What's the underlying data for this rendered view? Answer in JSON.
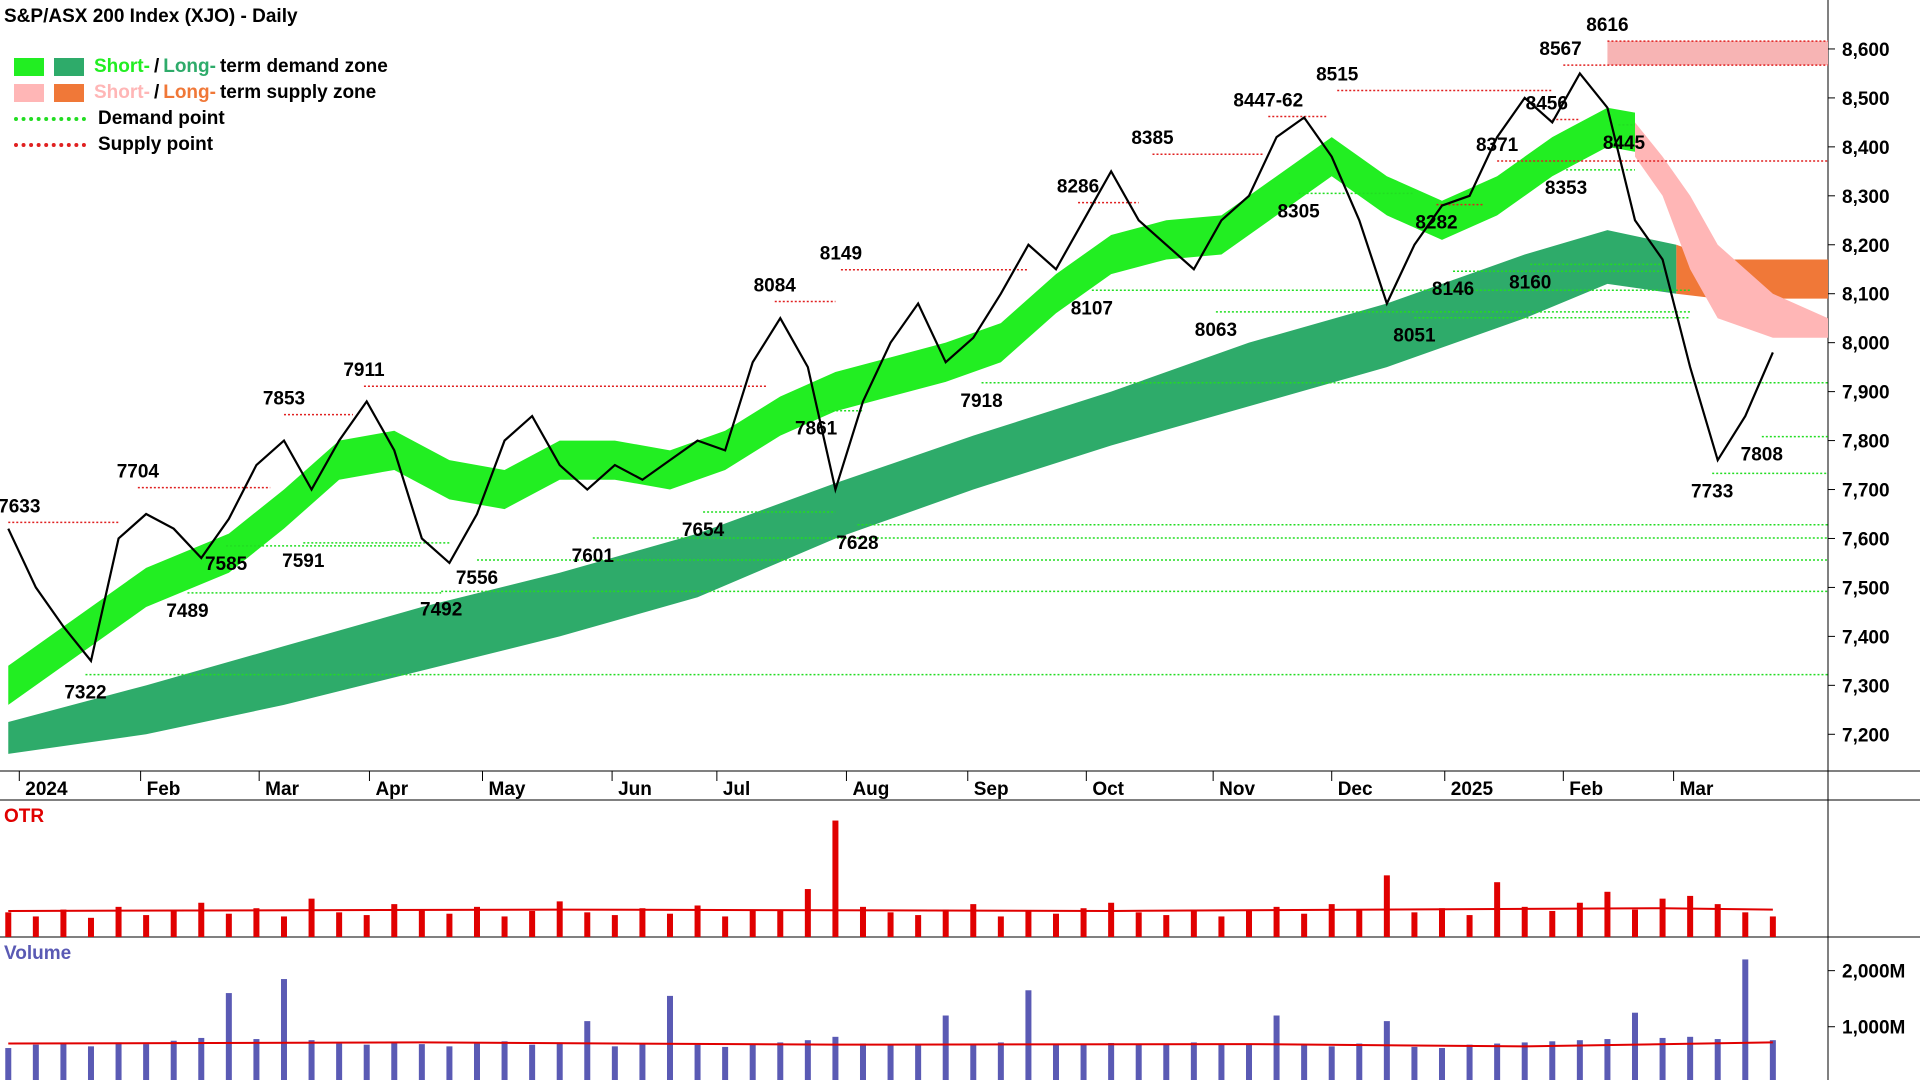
{
  "chart_data": {
    "type": "line",
    "title": "S&P/ASX 200 Index (XJO) - Daily",
    "xlim": [
      -0.3,
      66
    ],
    "xticks": [
      {
        "value": 0.4,
        "label": "2024"
      },
      {
        "value": 4.8,
        "label": "Feb"
      },
      {
        "value": 9.1,
        "label": "Mar"
      },
      {
        "value": 13.1,
        "label": "Apr"
      },
      {
        "value": 17.2,
        "label": "May"
      },
      {
        "value": 21.9,
        "label": "Jun"
      },
      {
        "value": 25.7,
        "label": "Jul"
      },
      {
        "value": 30.4,
        "label": "Aug"
      },
      {
        "value": 34.8,
        "label": "Sep"
      },
      {
        "value": 39.1,
        "label": "Oct"
      },
      {
        "value": 43.7,
        "label": "Nov"
      },
      {
        "value": 48.0,
        "label": "Dec"
      },
      {
        "value": 52.1,
        "label": "2025"
      },
      {
        "value": 56.4,
        "label": "Feb"
      },
      {
        "value": 60.4,
        "label": "Mar"
      }
    ],
    "ylim": [
      7125,
      8700
    ],
    "yticks": [
      {
        "value": 7200,
        "label": "7,200"
      },
      {
        "value": 7300,
        "label": "7,300"
      },
      {
        "value": 7400,
        "label": "7,400"
      },
      {
        "value": 7500,
        "label": "7,500"
      },
      {
        "value": 7600,
        "label": "7,600"
      },
      {
        "value": 7700,
        "label": "7,700"
      },
      {
        "value": 7800,
        "label": "7,800"
      },
      {
        "value": 7900,
        "label": "7,900"
      },
      {
        "value": 8000,
        "label": "8,000"
      },
      {
        "value": 8100,
        "label": "8,100"
      },
      {
        "value": 8200,
        "label": "8,200"
      },
      {
        "value": 8300,
        "label": "8,300"
      },
      {
        "value": 8400,
        "label": "8,400"
      },
      {
        "value": 8500,
        "label": "8,500"
      },
      {
        "value": 8600,
        "label": "8,600"
      }
    ],
    "color": "#000000",
    "values": [
      7620,
      7500,
      7420,
      7350,
      7600,
      7650,
      7620,
      7560,
      7640,
      7750,
      7800,
      7700,
      7800,
      7880,
      7780,
      7600,
      7550,
      7650,
      7800,
      7850,
      7750,
      7700,
      7750,
      7720,
      7760,
      7800,
      7780,
      7960,
      8050,
      7950,
      7700,
      7880,
      8000,
      8080,
      7960,
      8010,
      8100,
      8200,
      8150,
      8250,
      8350,
      8250,
      8200,
      8150,
      8250,
      8300,
      8420,
      8460,
      8380,
      8250,
      8080,
      8200,
      8280,
      8300,
      8420,
      8500,
      8450,
      8550,
      8480,
      8250,
      8170,
      7950,
      7760,
      7850,
      7980
    ],
    "bands": [
      {
        "color": "#2eab6a",
        "x": [
          0,
          5,
          10,
          15,
          20,
          25,
          30,
          35,
          40,
          45,
          50,
          55,
          58,
          60.5
        ],
        "upper": [
          7225,
          7300,
          7380,
          7460,
          7530,
          7610,
          7713,
          7810,
          7900,
          8000,
          8080,
          8180,
          8230,
          8200
        ],
        "lower": [
          7160,
          7200,
          7260,
          7330,
          7400,
          7480,
          7600,
          7700,
          7790,
          7870,
          7950,
          8050,
          8120,
          8100
        ]
      },
      {
        "color": "#f07838",
        "x": [
          60.5,
          62,
          66
        ],
        "upper": [
          8200,
          8170,
          8170
        ],
        "lower": [
          8100,
          8090,
          8090
        ]
      },
      {
        "color": "#22ee22",
        "x": [
          0,
          3,
          5,
          8,
          10,
          12,
          14,
          16,
          18,
          20,
          22,
          24,
          26,
          28,
          30,
          32,
          34,
          36,
          38,
          40,
          42,
          44,
          46,
          48,
          50,
          52,
          54,
          56,
          58,
          59
        ],
        "upper": [
          7340,
          7460,
          7540,
          7610,
          7700,
          7800,
          7820,
          7760,
          7740,
          7800,
          7800,
          7780,
          7820,
          7890,
          7940,
          7970,
          8000,
          8040,
          8140,
          8220,
          8250,
          8260,
          8340,
          8420,
          8340,
          8290,
          8340,
          8420,
          8480,
          8470
        ],
        "lower": [
          7260,
          7380,
          7460,
          7530,
          7620,
          7720,
          7740,
          7680,
          7660,
          7720,
          7720,
          7700,
          7740,
          7810,
          7860,
          7890,
          7920,
          7960,
          8060,
          8140,
          8170,
          8180,
          8260,
          8340,
          8260,
          8210,
          8260,
          8340,
          8400,
          8390
        ]
      },
      {
        "color": "#ffb6b6",
        "x": [
          59,
          60,
          61,
          62,
          64,
          66
        ],
        "upper": [
          8450,
          8380,
          8300,
          8200,
          8100,
          8050
        ],
        "lower": [
          8380,
          8300,
          8150,
          8050,
          8010,
          8010
        ]
      },
      {
        "color": "#f7b4b4",
        "x": [
          58,
          66
        ],
        "upper": [
          8616,
          8616
        ],
        "lower": [
          8567,
          8567
        ]
      }
    ],
    "demand_points": {
      "color": "#22dd22",
      "levels": [
        {
          "value": 7322,
          "x0": 2.8,
          "x1": 66
        },
        {
          "value": 7489,
          "x0": 6.5,
          "x1": 15.7
        },
        {
          "value": 7492,
          "x0": 15.7,
          "x1": 66
        },
        {
          "value": 7556,
          "x0": 17,
          "x1": 66
        },
        {
          "value": 7601,
          "x0": 21.2,
          "x1": 66
        },
        {
          "value": 7628,
          "x0": 30.8,
          "x1": 66
        },
        {
          "value": 7733,
          "x0": 61.8,
          "x1": 66
        },
        {
          "value": 7808,
          "x0": 63.6,
          "x1": 66
        },
        {
          "value": 7918,
          "x0": 35.3,
          "x1": 66
        },
        {
          "value": 8051,
          "x0": 51,
          "x1": 61
        },
        {
          "value": 8063,
          "x0": 43.8,
          "x1": 61
        },
        {
          "value": 8107,
          "x0": 39.3,
          "x1": 61
        },
        {
          "value": 8146,
          "x0": 52.4,
          "x1": 60
        },
        {
          "value": 8160,
          "x0": 55.2,
          "x1": 60
        },
        {
          "value": 7585,
          "x0": 7.9,
          "x1": 15
        },
        {
          "value": 7591,
          "x0": 10.7,
          "x1": 16
        },
        {
          "value": 7654,
          "x0": 25.2,
          "x1": 30
        },
        {
          "value": 7861,
          "x0": 29.3,
          "x1": 31
        },
        {
          "value": 8305,
          "x0": 46.8,
          "x1": 51
        },
        {
          "value": 8353,
          "x0": 56.5,
          "x1": 59
        },
        {
          "value": 8445,
          "x0": 58.4,
          "x1": 59
        }
      ]
    },
    "supply_points": {
      "color": "#e02020",
      "levels": [
        {
          "value": 7633,
          "x0": 0,
          "x1": 4
        },
        {
          "value": 7704,
          "x0": 4.7,
          "x1": 9.5
        },
        {
          "value": 7853,
          "x0": 10,
          "x1": 12.5
        },
        {
          "value": 7911,
          "x0": 12.9,
          "x1": 27.5
        },
        {
          "value": 8084,
          "x0": 27.8,
          "x1": 30
        },
        {
          "value": 8149,
          "x0": 30.2,
          "x1": 37
        },
        {
          "value": 8286,
          "x0": 38.8,
          "x1": 41
        },
        {
          "value": 8385,
          "x0": 41.5,
          "x1": 45.5
        },
        {
          "value": 8462,
          "x0": 45.7,
          "x1": 47.8
        },
        {
          "value": 8515,
          "x0": 48.2,
          "x1": 56
        },
        {
          "value": 8282,
          "x0": 51.8,
          "x1": 53.5
        },
        {
          "value": 8371,
          "x0": 54,
          "x1": 66
        },
        {
          "value": 8456,
          "x0": 56,
          "x1": 57
        },
        {
          "value": 8567,
          "x0": 56.4,
          "x1": 66
        },
        {
          "value": 8616,
          "x0": 58,
          "x1": 66
        }
      ]
    },
    "annotations": [
      {
        "value": 7633,
        "x": 0.4,
        "pos": "above"
      },
      {
        "value": 7704,
        "x": 4.7,
        "pos": "above"
      },
      {
        "value": 7853,
        "x": 10,
        "pos": "above"
      },
      {
        "value": 7911,
        "x": 12.9,
        "pos": "above"
      },
      {
        "value": 8084,
        "x": 27.8,
        "pos": "above"
      },
      {
        "value": 8149,
        "x": 30.2,
        "pos": "above"
      },
      {
        "value": 8286,
        "x": 38.8,
        "pos": "above"
      },
      {
        "value": 8385,
        "x": 41.5,
        "pos": "above"
      },
      {
        "value": 8462,
        "label": "8447-62",
        "x": 45.7,
        "pos": "above"
      },
      {
        "value": 8515,
        "x": 48.2,
        "pos": "above"
      },
      {
        "value": 8371,
        "x": 54,
        "pos": "above"
      },
      {
        "value": 8456,
        "x": 55.8,
        "pos": "above"
      },
      {
        "value": 8567,
        "x": 56.3,
        "pos": "above"
      },
      {
        "value": 8616,
        "x": 58,
        "pos": "above"
      },
      {
        "value": 8282,
        "x": 51.8,
        "pos": "below"
      },
      {
        "value": 7322,
        "x": 2.8,
        "pos": "below"
      },
      {
        "value": 7489,
        "x": 6.5,
        "pos": "below"
      },
      {
        "value": 7585,
        "x": 7.9,
        "pos": "below"
      },
      {
        "value": 7591,
        "x": 10.7,
        "pos": "below"
      },
      {
        "value": 7492,
        "x": 15.7,
        "pos": "below"
      },
      {
        "value": 7556,
        "x": 17,
        "pos": "below"
      },
      {
        "value": 7601,
        "x": 21.2,
        "pos": "below"
      },
      {
        "value": 7654,
        "x": 25.2,
        "pos": "below"
      },
      {
        "value": 7628,
        "x": 30.8,
        "pos": "below"
      },
      {
        "value": 7861,
        "x": 29.3,
        "pos": "below"
      },
      {
        "value": 7918,
        "x": 35.3,
        "pos": "below"
      },
      {
        "value": 8107,
        "x": 39.3,
        "pos": "below"
      },
      {
        "value": 8063,
        "x": 43.8,
        "pos": "below"
      },
      {
        "value": 8305,
        "x": 46.8,
        "pos": "below"
      },
      {
        "value": 8051,
        "x": 51,
        "pos": "below"
      },
      {
        "value": 8146,
        "x": 52.4,
        "pos": "below"
      },
      {
        "value": 8160,
        "x": 55.2,
        "pos": "below"
      },
      {
        "value": 8353,
        "x": 56.5,
        "pos": "below"
      },
      {
        "value": 8445,
        "x": 58.6,
        "pos": "below"
      },
      {
        "value": 7733,
        "x": 61.8,
        "pos": "below"
      },
      {
        "value": 7808,
        "x": 63.6,
        "pos": "below"
      }
    ],
    "legend": [
      {
        "swatches": [
          "#22ee22",
          "#2eab6a"
        ],
        "parts": [
          {
            "text": "Short-",
            "color": "#22ee22"
          },
          {
            "text": "/",
            "color": "#000000"
          },
          {
            "text": "Long-",
            "color": "#2eab6a"
          },
          {
            "text": "term demand zone",
            "color": "#000000"
          }
        ]
      },
      {
        "swatches": [
          "#ffb6b6",
          "#f07838"
        ],
        "parts": [
          {
            "text": "Short-",
            "color": "#ffb6b6"
          },
          {
            "text": "/",
            "color": "#000000"
          },
          {
            "text": "Long-",
            "color": "#f07838"
          },
          {
            "text": "term supply zone",
            "color": "#000000"
          }
        ]
      },
      {
        "line": "#22dd22",
        "parts": [
          {
            "text": "Demand point",
            "color": "#000000"
          }
        ]
      },
      {
        "line": "#e02020",
        "parts": [
          {
            "text": "Supply point",
            "color": "#000000"
          }
        ]
      }
    ],
    "otr": {
      "title": "OTR",
      "color": "#e00000",
      "ylim": [
        0,
        100
      ],
      "values": [
        18,
        15,
        20,
        14,
        22,
        16,
        19,
        25,
        17,
        21,
        15,
        28,
        18,
        16,
        24,
        20,
        17,
        22,
        15,
        19,
        26,
        18,
        16,
        21,
        17,
        23,
        15,
        20,
        19,
        35,
        85,
        22,
        18,
        16,
        20,
        24,
        15,
        19,
        17,
        21,
        25,
        18,
        16,
        20,
        15,
        19,
        22,
        17,
        24,
        20,
        45,
        18,
        21,
        16,
        40,
        22,
        19,
        25,
        33,
        20,
        28,
        30,
        24,
        18,
        15
      ],
      "avg_x": [
        0,
        20,
        40,
        60,
        64
      ],
      "avg": [
        19,
        20,
        19,
        21,
        20
      ]
    },
    "volume": {
      "title": "Volume",
      "color": "#5a5ab4",
      "avg_color": "#e00000",
      "ylim": [
        50,
        2600
      ],
      "yticks": [
        {
          "value": 1000,
          "label": "1,000M"
        },
        {
          "value": 2000,
          "label": "2,000M"
        }
      ],
      "values": [
        620,
        680,
        700,
        650,
        720,
        690,
        750,
        800,
        1600,
        780,
        1850,
        760,
        700,
        680,
        720,
        690,
        650,
        700,
        740,
        680,
        720,
        1100,
        650,
        700,
        1550,
        680,
        640,
        700,
        720,
        760,
        820,
        700,
        690,
        680,
        1200,
        700,
        720,
        1650,
        690,
        700,
        710,
        680,
        700,
        720,
        690,
        700,
        1200,
        680,
        650,
        700,
        1100,
        640,
        620,
        680,
        700,
        720,
        740,
        760,
        780,
        1250,
        800,
        820,
        780,
        2200,
        760
      ],
      "avg_x": [
        0,
        15,
        30,
        45,
        55,
        64
      ],
      "avg": [
        700,
        720,
        680,
        690,
        650,
        720
      ]
    }
  }
}
